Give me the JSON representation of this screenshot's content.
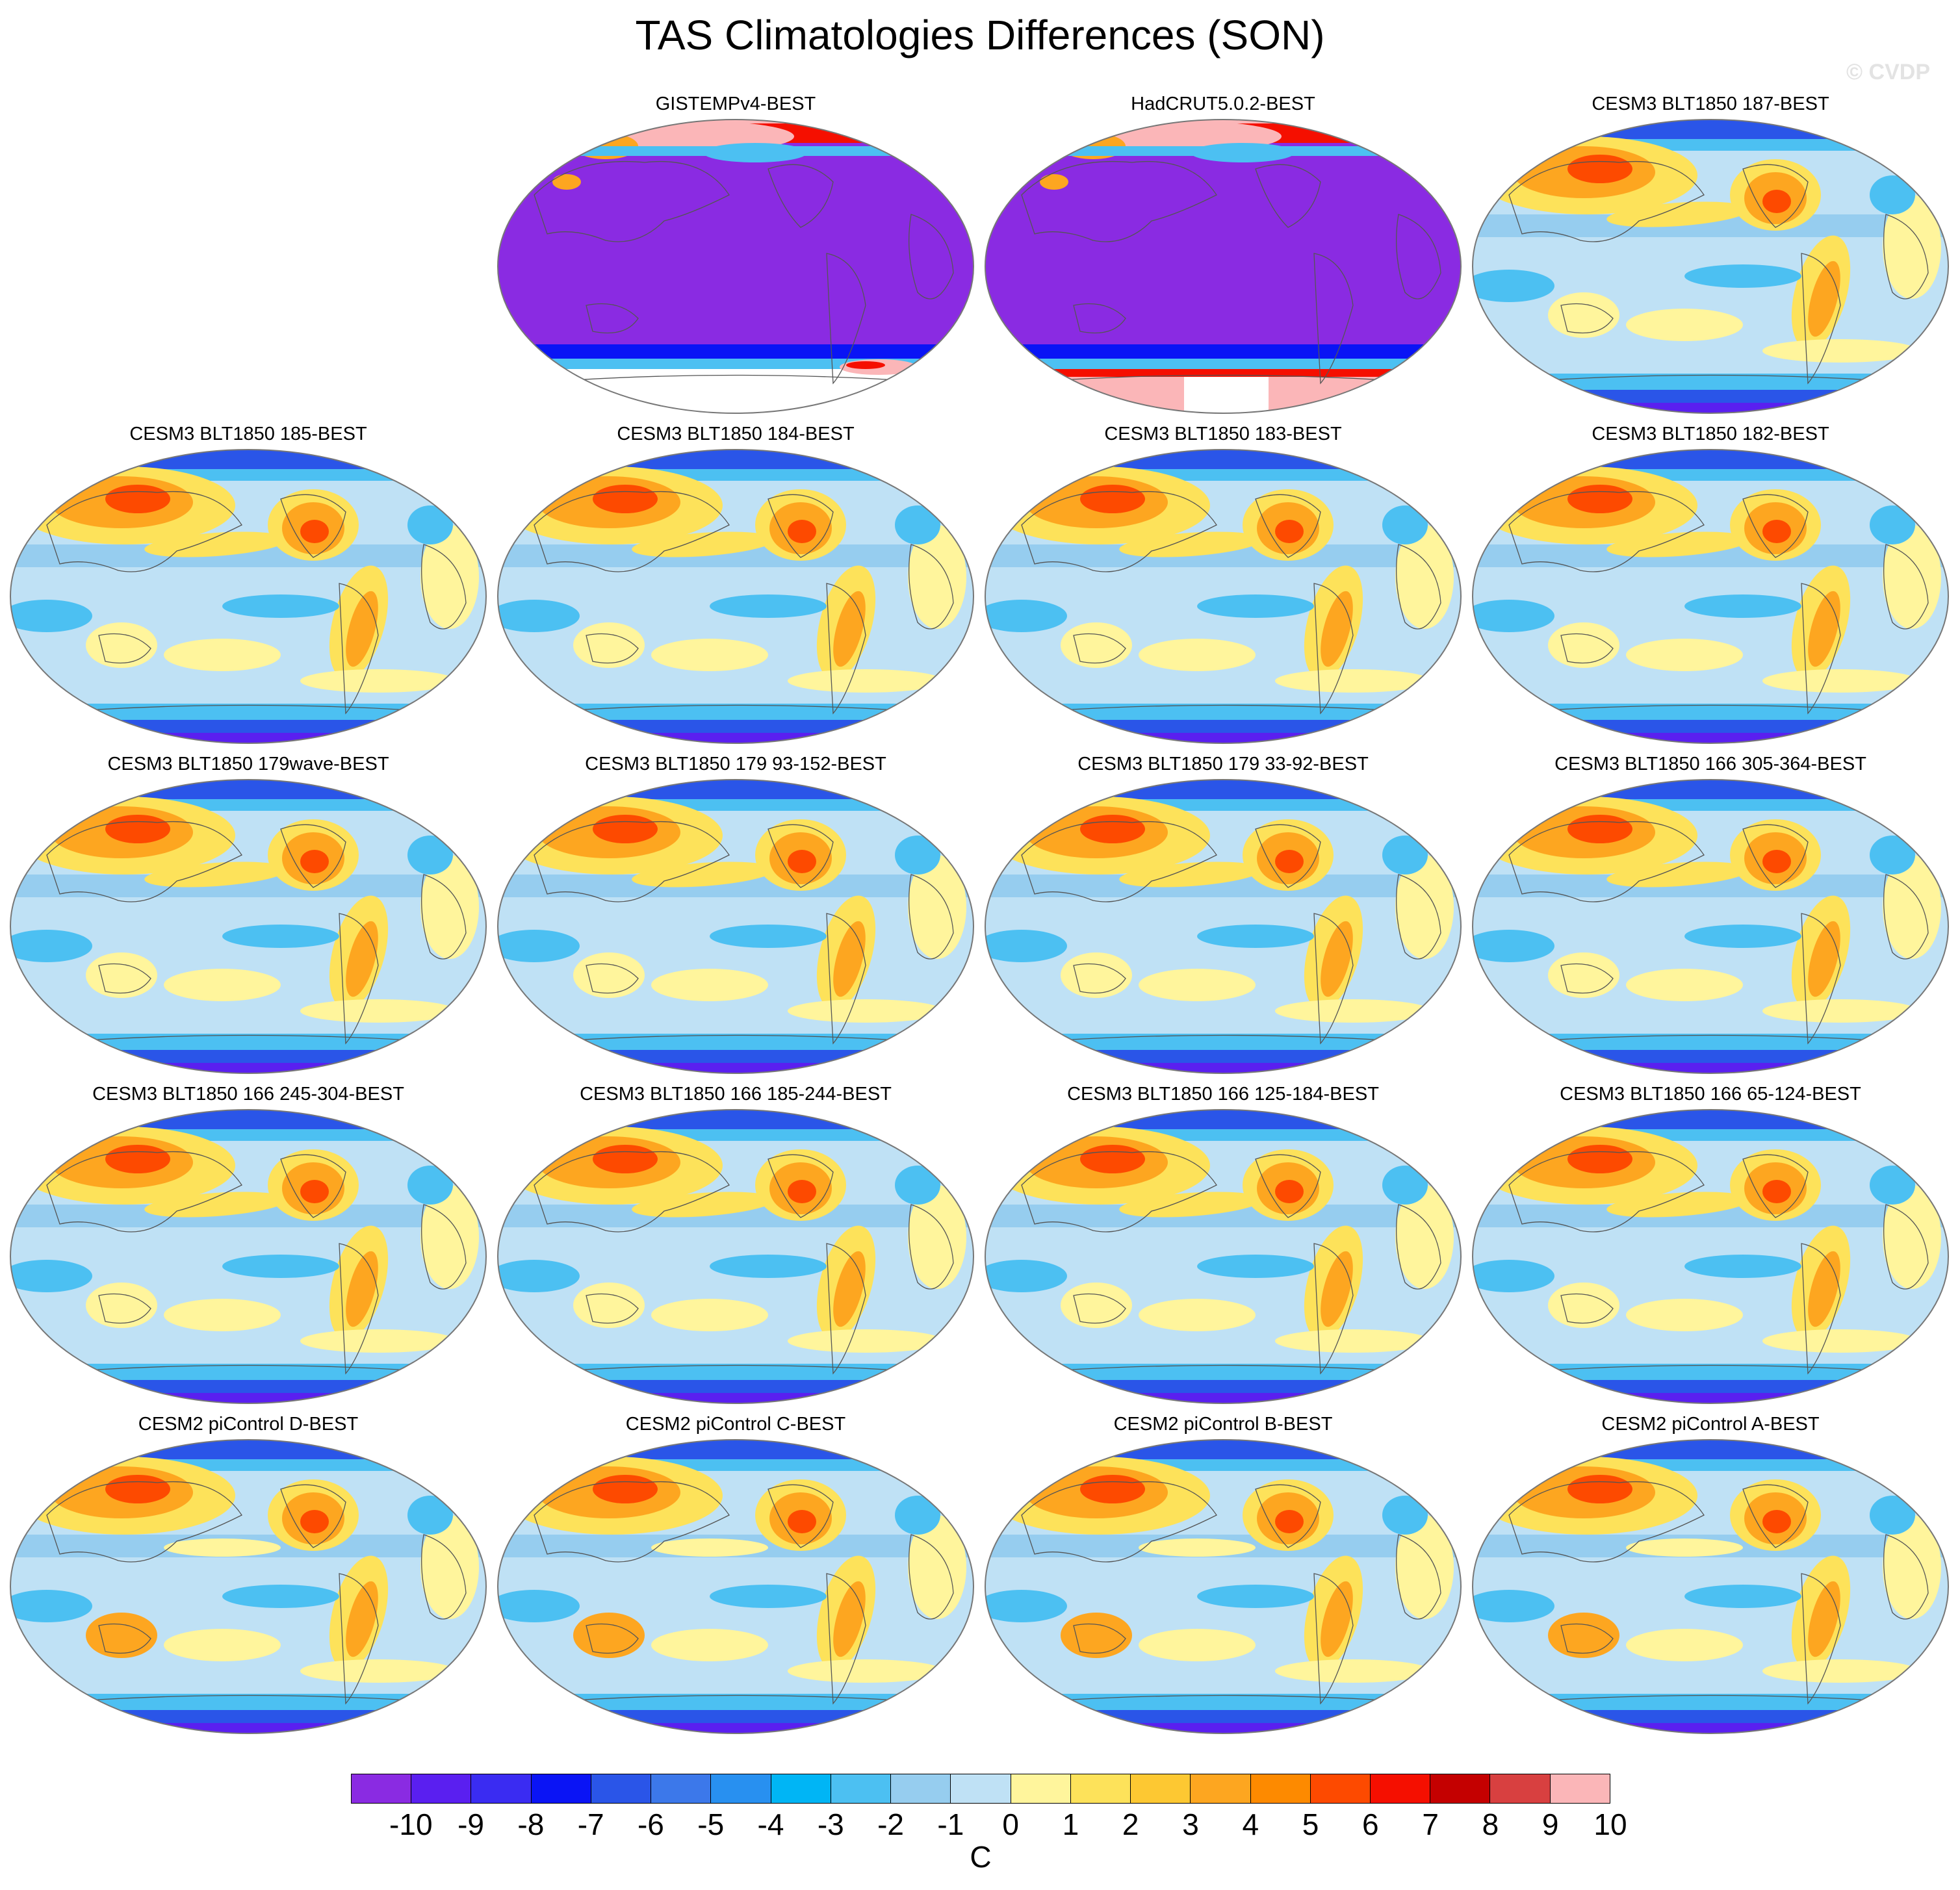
{
  "title": "TAS Climatologies Differences (SON)",
  "watermark": "© CVDP",
  "panels": [
    {
      "label": "GISTEMPv4-BEST",
      "style": "obs_gistemp"
    },
    {
      "label": "HadCRUT5.0.2-BEST",
      "style": "obs_hadcrut"
    },
    {
      "label": "CESM3 BLT1850 187-BEST",
      "style": "model"
    },
    {
      "label": "CESM3 BLT1850 185-BEST",
      "style": "model"
    },
    {
      "label": "CESM3 BLT1850 184-BEST",
      "style": "model"
    },
    {
      "label": "CESM3 BLT1850 183-BEST",
      "style": "model"
    },
    {
      "label": "CESM3 BLT1850 182-BEST",
      "style": "model"
    },
    {
      "label": "CESM3 BLT1850 179wave-BEST",
      "style": "model"
    },
    {
      "label": "CESM3 BLT1850 179 93-152-BEST",
      "style": "model"
    },
    {
      "label": "CESM3 BLT1850 179 33-92-BEST",
      "style": "model"
    },
    {
      "label": "CESM3 BLT1850 166 305-364-BEST",
      "style": "model"
    },
    {
      "label": "CESM3 BLT1850 166 245-304-BEST",
      "style": "model"
    },
    {
      "label": "CESM3 BLT1850 166 185-244-BEST",
      "style": "model"
    },
    {
      "label": "CESM3 BLT1850 166 125-184-BEST",
      "style": "model"
    },
    {
      "label": "CESM3 BLT1850 166 65-124-BEST",
      "style": "model"
    },
    {
      "label": "CESM2 piControl D-BEST",
      "style": "picontrol"
    },
    {
      "label": "CESM2 piControl C-BEST",
      "style": "picontrol"
    },
    {
      "label": "CESM2 piControl B-BEST",
      "style": "picontrol"
    },
    {
      "label": "CESM2 piControl A-BEST",
      "style": "picontrol"
    }
  ],
  "colorbar": {
    "units": "C",
    "ticks": [
      "-10",
      "-9",
      "-8",
      "-7",
      "-6",
      "-5",
      "-4",
      "-3",
      "-2",
      "-1",
      "0",
      "1",
      "2",
      "3",
      "4",
      "5",
      "6",
      "7",
      "8",
      "9",
      "10"
    ],
    "colors": [
      "#8a2be2",
      "#5a1ff0",
      "#3a2cf2",
      "#0a14f5",
      "#2a55e8",
      "#3c78ea",
      "#2890f0",
      "#00b5f5",
      "#4cc0f2",
      "#96cdef",
      "#bfe1f5",
      "#fff59c",
      "#fde25a",
      "#fdc832",
      "#fda620",
      "#fd8a00",
      "#fd4a00",
      "#f50f00",
      "#c40000",
      "#d84040",
      "#fbb6b8"
    ]
  },
  "map_colors": {
    "ocean_cool": "#bfe1f5",
    "ocean_cooler": "#96cdef",
    "cold": "#4cc0f2",
    "very_cold": "#2a55e8",
    "warm": "#fff59c",
    "warmer": "#fde25a",
    "hot": "#fda620",
    "hotter": "#fd4a00",
    "obs_fill": "#8a2be2",
    "pink": "#fbb6b8",
    "outline": "#777777"
  }
}
